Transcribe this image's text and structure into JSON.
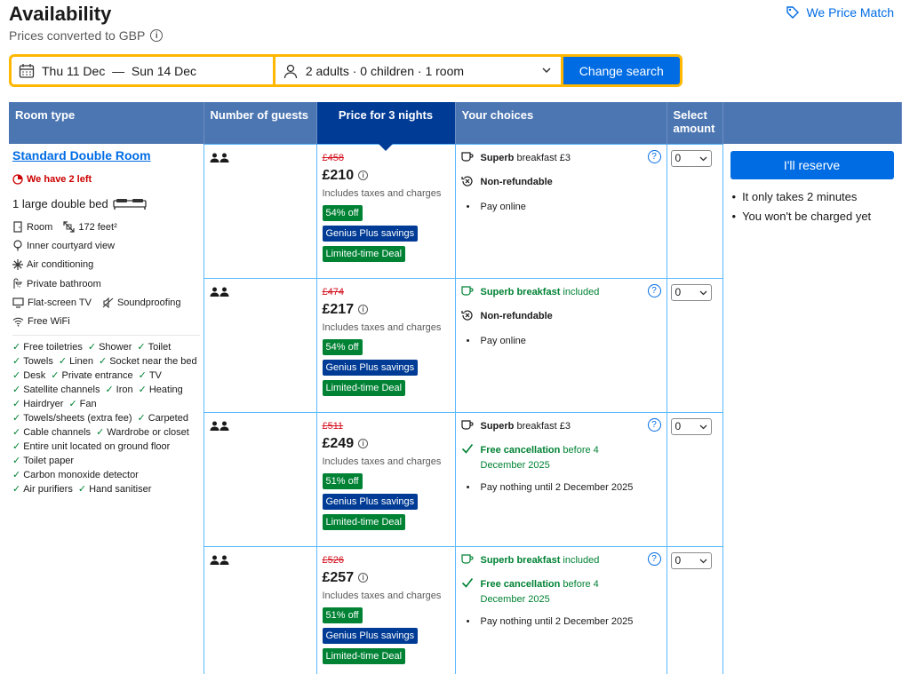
{
  "header": {
    "title": "Availability",
    "subtitle": "Prices converted to GBP",
    "price_match": "We Price Match"
  },
  "search": {
    "dates": "Thu 11 Dec  —  Sun 14 Dec",
    "guests": "2 adults · 0 children · 1 room",
    "button": "Change search"
  },
  "table": {
    "headers": {
      "room_type": "Room type",
      "guests": "Number of guests",
      "price": "Price for 3 nights",
      "choices": "Your choices",
      "amount": "Select amount"
    }
  },
  "room": {
    "name": "Standard Double Room",
    "left": "We have 2 left",
    "bed": "1 large double bed",
    "facilities": {
      "room": "Room",
      "size": "172 feet²",
      "view": "Inner courtyard view",
      "ac": "Air conditioning",
      "bathroom": "Private bathroom",
      "tv": "Flat-screen TV",
      "sound": "Soundproofing",
      "wifi": "Free WiFi"
    },
    "amenities": [
      "Free toiletries",
      "Shower",
      "Toilet",
      "Towels",
      "Linen",
      "Socket near the bed",
      "Desk",
      "Private entrance",
      "TV",
      "Satellite channels",
      "Iron",
      "Heating",
      "Hairdryer",
      "Fan",
      "Towels/sheets (extra fee)",
      "Carpeted",
      "Cable channels",
      "Wardrobe or closet",
      "Entire unit located on ground floor",
      "Toilet paper",
      "Carbon monoxide detector",
      "Air purifiers",
      "Hand sanitiser"
    ]
  },
  "options": [
    {
      "old_price": "£458",
      "price": "£210",
      "taxes": "Includes taxes and charges",
      "discount": "54% off",
      "genius": "Genius Plus savings",
      "deal": "Limited-time Deal",
      "meal_bold": "Superb",
      "meal_rest": " breakfast £3",
      "meal_green": false,
      "c2_bold": "Non-refundable",
      "c2_rest": "",
      "c2_green": false,
      "c3": "Pay online",
      "amount": "0"
    },
    {
      "old_price": "£474",
      "price": "£217",
      "taxes": "Includes taxes and charges",
      "discount": "54% off",
      "genius": "Genius Plus savings",
      "deal": "Limited-time Deal",
      "meal_bold": "Superb breakfast",
      "meal_rest": " included",
      "meal_green": true,
      "c2_bold": "Non-refundable",
      "c2_rest": "",
      "c2_green": false,
      "c3": "Pay online",
      "amount": "0"
    },
    {
      "old_price": "£511",
      "price": "£249",
      "taxes": "Includes taxes and charges",
      "discount": "51% off",
      "genius": "Genius Plus savings",
      "deal": "Limited-time Deal",
      "meal_bold": "Superb",
      "meal_rest": " breakfast £3",
      "meal_green": false,
      "c2_bold": "Free cancellation",
      "c2_rest": " before 4 December 2025",
      "c2_green": true,
      "c3": "Pay nothing until 2 December 2025",
      "amount": "0"
    },
    {
      "old_price": "£526",
      "price": "£257",
      "taxes": "Includes taxes and charges",
      "discount": "51% off",
      "genius": "Genius Plus savings",
      "deal": "Limited-time Deal",
      "meal_bold": "Superb breakfast",
      "meal_rest": " included",
      "meal_green": true,
      "c2_bold": "Free cancellation",
      "c2_rest": " before 4 December 2025",
      "c2_green": true,
      "c3": "Pay nothing until 2 December 2025",
      "amount": "0"
    }
  ],
  "reserve": {
    "button": "I'll reserve",
    "notes": [
      "It only takes 2 minutes",
      "You won't be charged yet"
    ]
  },
  "colors": {
    "brand_blue": "#006ce4",
    "dark_blue": "#003b95",
    "header_blue": "#4c76b2",
    "green": "#008234",
    "red": "#d4111e",
    "yellow": "#ffb700"
  }
}
